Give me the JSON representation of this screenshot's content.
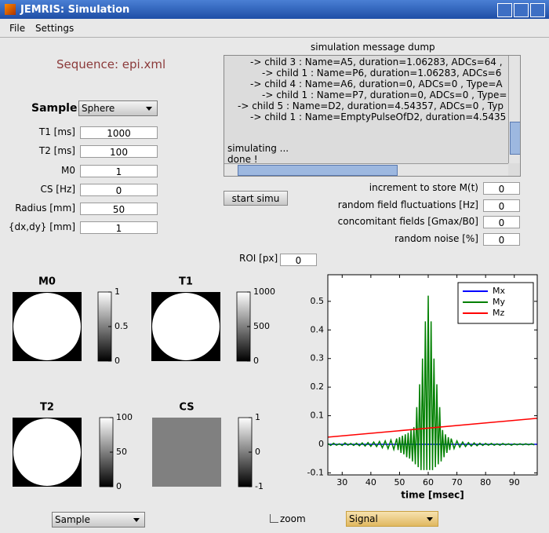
{
  "window": {
    "title": "JEMRIS: Simulation"
  },
  "menu": [
    "File",
    "Settings"
  ],
  "sequence": "Sequence: epi.xml",
  "sample": {
    "label": "Sample:",
    "value": "Sphere"
  },
  "parameters": [
    {
      "label": "T1 [ms]",
      "value": "1000"
    },
    {
      "label": "T2 [ms]",
      "value": "100"
    },
    {
      "label": "M0",
      "value": "1"
    },
    {
      "label": "CS [Hz]",
      "value": "0"
    },
    {
      "label": "Radius [mm]",
      "value": "50"
    },
    {
      "label": "{dx,dy} [mm]",
      "value": "1"
    }
  ],
  "message_dump": {
    "title": "simulation message dump",
    "lines": [
      "-> child 3 : Name=A5, duration=1.06283, ADCs=64 ,",
      "-> child 1 : Name=P6, duration=1.06283, ADCs=6",
      "-> child 4 : Name=A6, duration=0, ADCs=0 , Type=A",
      "-> child 1 : Name=P7, duration=0, ADCs=0 , Type=",
      "-> child 5 : Name=D2, duration=4.54357, ADCs=0 , Typ",
      "-> child 1 : Name=EmptyPulseOfD2, duration=4.5435"
    ],
    "status": [
      "simulating ...",
      "done !"
    ]
  },
  "start_button": "start simu",
  "options": [
    {
      "label": "increment to store M(t)",
      "value": "0"
    },
    {
      "label": "random field fluctuations [Hz]",
      "value": "0"
    },
    {
      "label": "concomitant fields [Gmax/B0]",
      "value": "0"
    },
    {
      "label": "random noise [%]",
      "value": "0"
    }
  ],
  "roi": {
    "label": "ROI [px]",
    "value": "0"
  },
  "images": [
    {
      "title": "M0",
      "shape": "circle",
      "color": "#ffffff",
      "clim": [
        0,
        1
      ],
      "ticks": [
        0,
        0.5,
        1
      ]
    },
    {
      "title": "T1",
      "shape": "circle",
      "color": "#ffffff",
      "clim": [
        0,
        1000
      ],
      "ticks": [
        0,
        500,
        1000
      ]
    },
    {
      "title": "T2",
      "shape": "circle",
      "color": "#ffffff",
      "clim": [
        0,
        100
      ],
      "ticks": [
        0,
        50,
        100
      ]
    },
    {
      "title": "CS",
      "shape": "square",
      "color": "#808080",
      "clim": [
        -1,
        1
      ],
      "ticks": [
        -1,
        0,
        1
      ]
    }
  ],
  "bottom": {
    "view": "Sample",
    "zoom": "zoom",
    "plot": "Signal"
  },
  "chart_data": {
    "type": "line",
    "xlabel": "time [msec]",
    "xlim": [
      25,
      98
    ],
    "ylim": [
      -0.107,
      0.593
    ],
    "xticks": [
      30,
      40,
      50,
      60,
      70,
      80,
      90
    ],
    "yticks": [
      -0.1,
      0,
      0.1,
      0.2,
      0.3,
      0.4,
      0.5
    ],
    "legend": "upper right",
    "series": [
      {
        "name": "Mx",
        "color": "#0000ff",
        "x": [
          25,
          98
        ],
        "values": [
          0,
          0
        ]
      },
      {
        "name": "My",
        "color": "#008000",
        "x": [
          25,
          26,
          27,
          28,
          29,
          30,
          31,
          32,
          33,
          34,
          35,
          36,
          37,
          38,
          39,
          40,
          41,
          42,
          43,
          44,
          45,
          46,
          47,
          48,
          49,
          49.5,
          50,
          50.5,
          51,
          51.5,
          52,
          52.5,
          53,
          53.5,
          54,
          54.5,
          55,
          55.5,
          56,
          56.5,
          57,
          57.5,
          58,
          58.5,
          59,
          59.5,
          60,
          60.5,
          61,
          61.5,
          62,
          62.5,
          63,
          63.5,
          64,
          64.5,
          65,
          65.5,
          66,
          66.5,
          67,
          67.5,
          68,
          69,
          70,
          71,
          72,
          73,
          74,
          75,
          76,
          77,
          78,
          79,
          80,
          81,
          82,
          83,
          84,
          85,
          86,
          87,
          88,
          89,
          90,
          91,
          92,
          93,
          94,
          95,
          96,
          97
        ],
        "values": [
          0.003,
          -0.004,
          0.004,
          -0.003,
          0.002,
          -0.004,
          0.005,
          -0.003,
          0.003,
          -0.004,
          0.004,
          -0.005,
          0.005,
          -0.006,
          0.006,
          -0.007,
          0.008,
          -0.008,
          0.01,
          -0.012,
          0.012,
          -0.015,
          0.015,
          -0.018,
          0.02,
          -0.02,
          0.025,
          -0.03,
          0.03,
          -0.035,
          0.035,
          -0.045,
          0.04,
          -0.05,
          0.05,
          -0.06,
          0.06,
          -0.07,
          0.13,
          -0.08,
          0.21,
          -0.09,
          0.3,
          -0.09,
          0.43,
          -0.09,
          0.52,
          -0.09,
          0.43,
          -0.09,
          0.3,
          -0.08,
          0.21,
          -0.07,
          0.13,
          -0.06,
          0.05,
          -0.045,
          0.035,
          -0.03,
          0.025,
          -0.02,
          0.02,
          -0.015,
          0.012,
          -0.01,
          0.008,
          -0.008,
          0.006,
          -0.006,
          0.005,
          -0.005,
          0.004,
          -0.004,
          0.003,
          -0.003,
          0.003,
          -0.003,
          0.002,
          -0.003,
          0.003,
          -0.002,
          0.002,
          -0.003,
          0.002,
          -0.002,
          0.002,
          -0.002,
          0.002,
          -0.002,
          0.002,
          -0.002
        ]
      },
      {
        "name": "Mz",
        "color": "#ff0000",
        "x": [
          25,
          98
        ],
        "values": [
          0.025,
          0.091
        ]
      }
    ]
  }
}
